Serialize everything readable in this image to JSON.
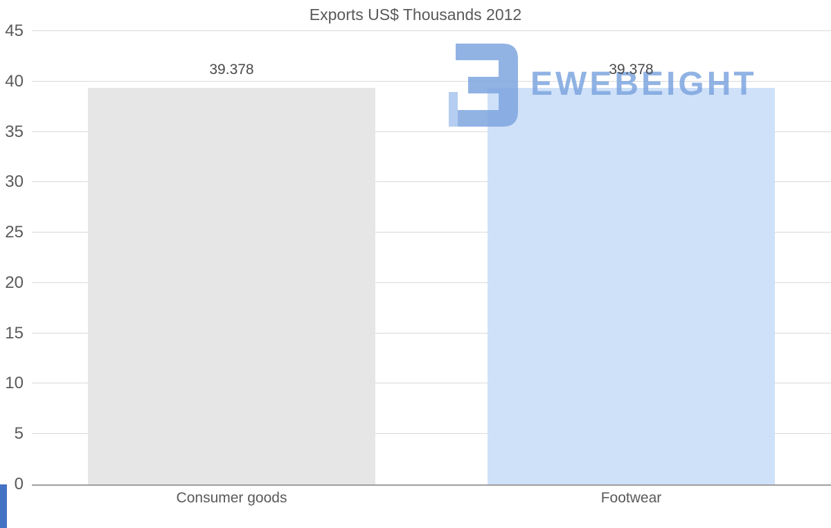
{
  "chart_data": {
    "type": "bar",
    "title": "Exports US$ Thousands 2012",
    "categories": [
      "Consumer goods",
      "Footwear"
    ],
    "values": [
      39.378,
      39.378
    ],
    "value_labels": [
      "39.378",
      "39.378"
    ],
    "ylim": [
      0,
      45
    ],
    "yticks": [
      0,
      5,
      10,
      15,
      20,
      25,
      30,
      35,
      40,
      45
    ],
    "grid": true,
    "legend_position": "none",
    "xlabel": "",
    "ylabel": "",
    "bar_colors": [
      "#e6e6e6",
      "#cfe1f8"
    ]
  },
  "watermark": {
    "text": "EWEBEIGHT",
    "icon": "blocky-3-logo",
    "color": "#7ea6e0"
  },
  "accent": {
    "color": "#4472c4"
  },
  "text_colors": {
    "title": "#595959",
    "ticks": "#595959",
    "value_labels": "#4a4a4a"
  }
}
